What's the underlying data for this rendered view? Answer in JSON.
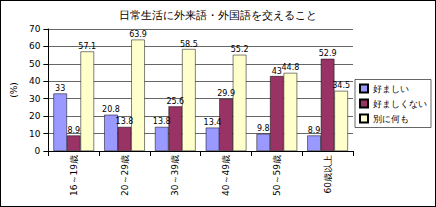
{
  "chart_data": {
    "type": "bar",
    "title": "日常生活に外来語・外国語を交えること",
    "ylabel": "(%)",
    "categories": [
      "16～19歳",
      "20～29歳",
      "30～39歳",
      "40～49歳",
      "50～59歳",
      "60歳以上"
    ],
    "series": [
      {
        "name": "好ましい",
        "color": "#9999ff",
        "values": [
          33,
          20.8,
          13.8,
          13.4,
          9.8,
          8.9
        ]
      },
      {
        "name": "好ましくない",
        "color": "#993366",
        "values": [
          8.9,
          13.8,
          25.6,
          29.9,
          43,
          52.9
        ]
      },
      {
        "name": "別に何も",
        "color": "#ffffcc",
        "values": [
          57.1,
          63.9,
          58.5,
          55.2,
          44.8,
          34.5
        ]
      }
    ],
    "ylim": [
      0,
      70
    ],
    "yticks": [
      0,
      10,
      20,
      30,
      40,
      50,
      60,
      70
    ],
    "grid": true,
    "legend": "right",
    "data_labels": true
  }
}
